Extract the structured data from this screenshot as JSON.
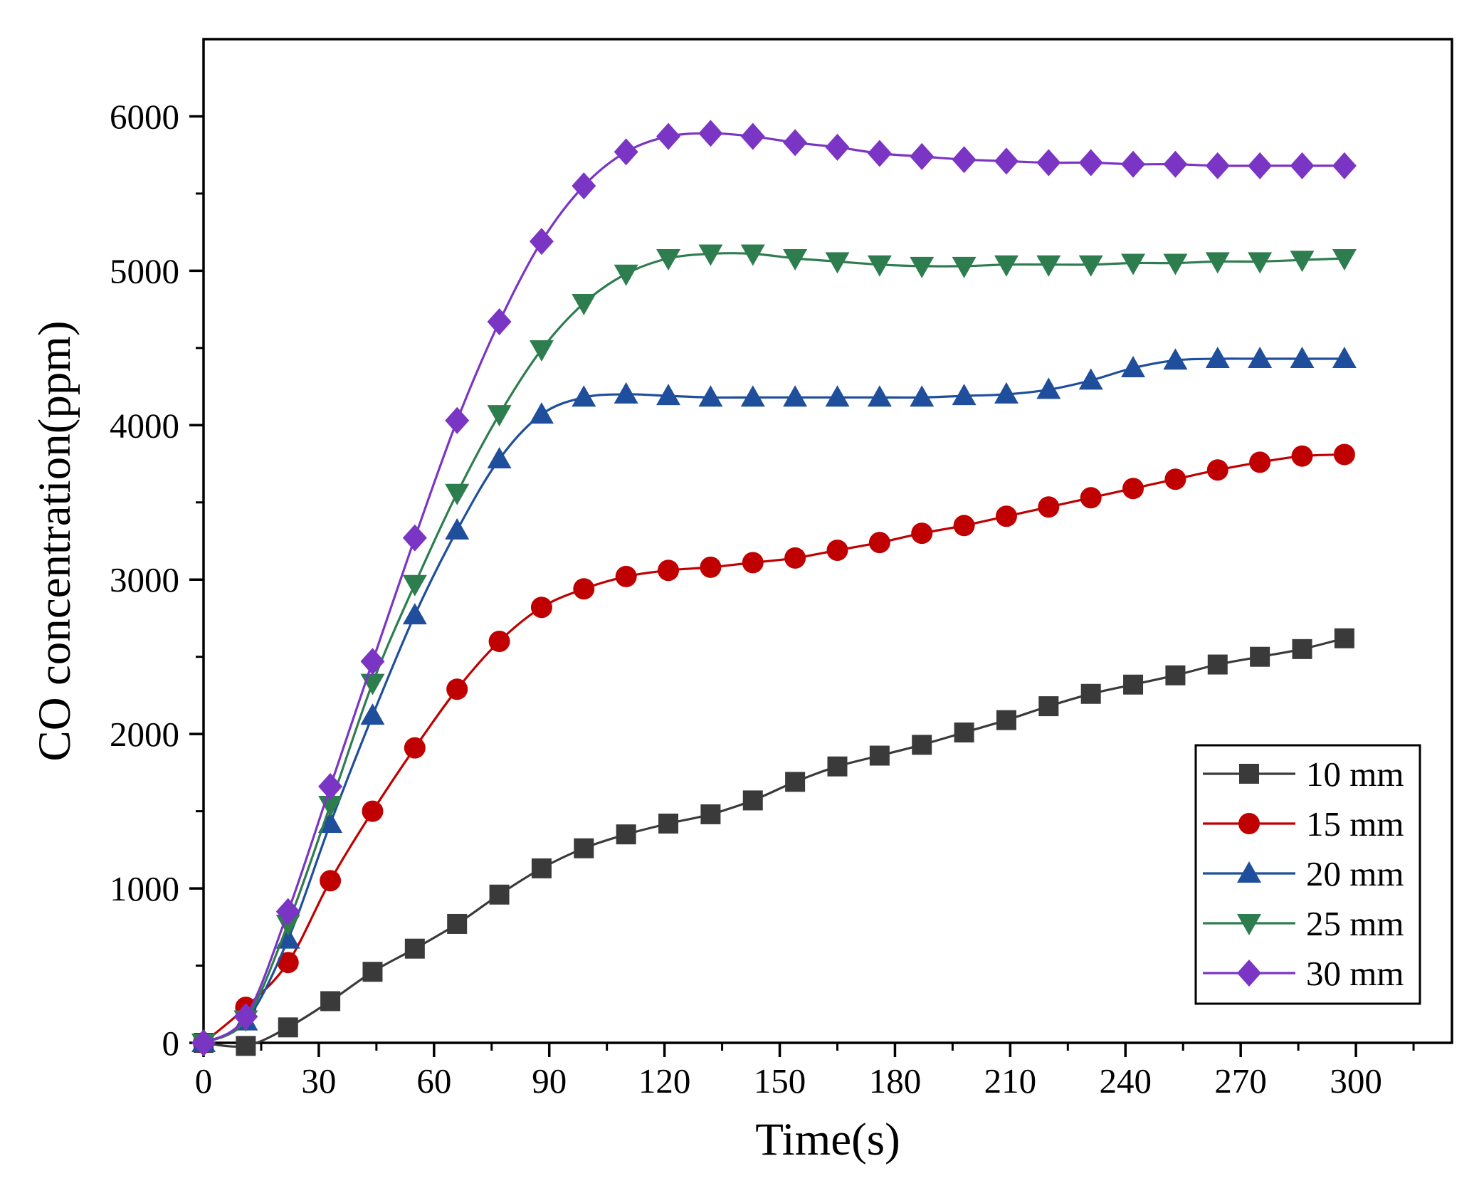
{
  "chart_data": {
    "type": "line",
    "xlabel": "Time(s)",
    "ylabel": "CO concentration(ppm)",
    "xlim": [
      0,
      325
    ],
    "ylim": [
      0,
      6500
    ],
    "xticks": [
      0,
      30,
      60,
      90,
      120,
      150,
      180,
      210,
      240,
      270,
      300
    ],
    "yticks": [
      0,
      1000,
      2000,
      3000,
      4000,
      5000,
      6000
    ],
    "grid": false,
    "legend_position": "bottom-right",
    "series": [
      {
        "name": "10 mm",
        "color": "#3a3a3a",
        "marker": "square",
        "x": [
          0,
          11,
          22,
          33,
          44,
          55,
          66,
          77,
          88,
          99,
          110,
          121,
          132,
          143,
          154,
          165,
          176,
          187,
          198,
          209,
          220,
          231,
          242,
          253,
          264,
          275,
          286,
          297
        ],
        "y": [
          0,
          -20,
          100,
          270,
          460,
          610,
          770,
          960,
          1130,
          1260,
          1350,
          1420,
          1480,
          1570,
          1690,
          1790,
          1860,
          1930,
          2010,
          2090,
          2180,
          2260,
          2320,
          2380,
          2450,
          2500,
          2550,
          2620
        ]
      },
      {
        "name": "15 mm",
        "color": "#c00000",
        "marker": "circle",
        "x": [
          0,
          11,
          22,
          33,
          44,
          55,
          66,
          77,
          88,
          99,
          110,
          121,
          132,
          143,
          154,
          165,
          176,
          187,
          198,
          209,
          220,
          231,
          242,
          253,
          264,
          275,
          286,
          297
        ],
        "y": [
          0,
          230,
          520,
          1050,
          1500,
          1910,
          2290,
          2600,
          2820,
          2940,
          3020,
          3060,
          3080,
          3110,
          3140,
          3190,
          3240,
          3300,
          3350,
          3410,
          3470,
          3530,
          3590,
          3650,
          3710,
          3760,
          3800,
          3810
        ]
      },
      {
        "name": "20 mm",
        "color": "#1f4e9c",
        "marker": "triangle-up",
        "x": [
          0,
          11,
          22,
          33,
          44,
          55,
          66,
          77,
          88,
          99,
          110,
          121,
          132,
          143,
          154,
          165,
          176,
          187,
          198,
          209,
          220,
          231,
          242,
          253,
          264,
          275,
          286,
          297
        ],
        "y": [
          0,
          140,
          670,
          1420,
          2120,
          2770,
          3320,
          3780,
          4070,
          4180,
          4200,
          4190,
          4180,
          4180,
          4180,
          4180,
          4180,
          4180,
          4190,
          4200,
          4230,
          4290,
          4370,
          4420,
          4430,
          4430,
          4430,
          4430
        ]
      },
      {
        "name": "25 mm",
        "color": "#2e7d4f",
        "marker": "triangle-down",
        "x": [
          0,
          11,
          22,
          33,
          44,
          55,
          66,
          77,
          88,
          99,
          110,
          121,
          132,
          143,
          154,
          165,
          176,
          187,
          198,
          209,
          220,
          231,
          242,
          253,
          264,
          275,
          286,
          297
        ],
        "y": [
          0,
          150,
          770,
          1540,
          2330,
          2970,
          3560,
          4070,
          4490,
          4790,
          4980,
          5080,
          5110,
          5110,
          5080,
          5060,
          5040,
          5030,
          5030,
          5040,
          5040,
          5040,
          5050,
          5050,
          5060,
          5060,
          5070,
          5080
        ]
      },
      {
        "name": "30 mm",
        "color": "#7b35c4",
        "marker": "diamond",
        "x": [
          0,
          11,
          22,
          33,
          44,
          55,
          66,
          77,
          88,
          99,
          110,
          121,
          132,
          143,
          154,
          165,
          176,
          187,
          198,
          209,
          220,
          231,
          242,
          253,
          264,
          275,
          286,
          297
        ],
        "y": [
          0,
          170,
          850,
          1660,
          2470,
          3270,
          4030,
          4670,
          5190,
          5550,
          5770,
          5870,
          5890,
          5870,
          5830,
          5800,
          5760,
          5740,
          5720,
          5710,
          5700,
          5700,
          5690,
          5690,
          5680,
          5680,
          5680,
          5680
        ]
      }
    ]
  }
}
